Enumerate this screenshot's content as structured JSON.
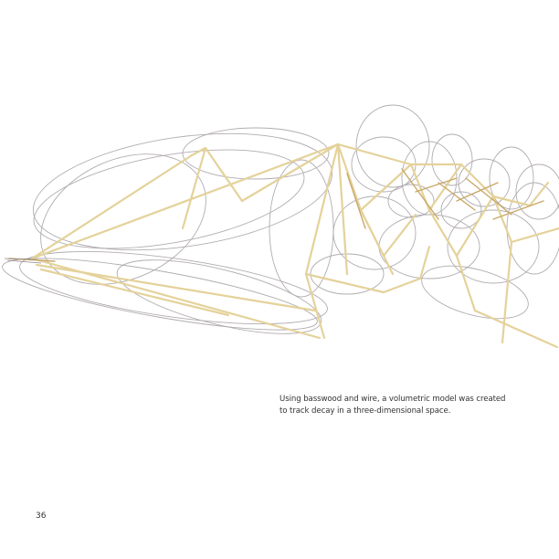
{
  "caption": {
    "line1": "Using basswood and wire, a volumetric model was created",
    "line2": "to track decay in a three-dimensional space."
  },
  "page_number": "36",
  "colors": {
    "wood": "#e2cf96",
    "wood_dark": "#c9a96a",
    "wire": "#9a9498",
    "wire_light": "#c3bfc2",
    "text": "#333333"
  }
}
